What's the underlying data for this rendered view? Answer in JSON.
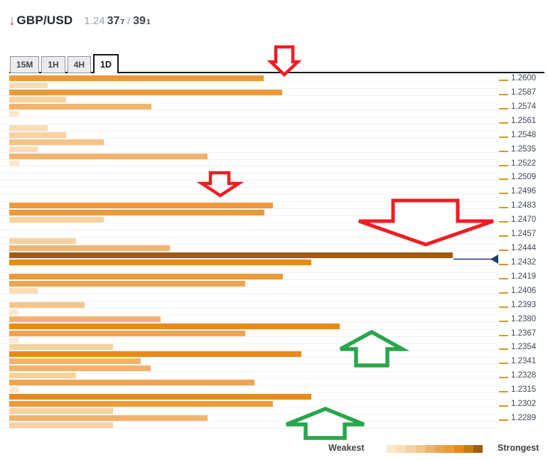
{
  "header": {
    "direction_icon": "down-arrow",
    "pair": "GBP/USD",
    "price_big": "1.24",
    "bid": "37",
    "bid_sup": "7",
    "separator": "/",
    "ask": "39",
    "ask_sup": "1"
  },
  "tabs": [
    {
      "label": "15M",
      "active": false
    },
    {
      "label": "1H",
      "active": false
    },
    {
      "label": "4H",
      "active": false
    },
    {
      "label": "1D",
      "active": true
    }
  ],
  "legend": {
    "weakest": "Weakest",
    "strongest": "Strongest"
  },
  "palette": [
    "#fbe8cd",
    "#f9ddb7",
    "#f7d2a0",
    "#f5c487",
    "#f2b46c",
    "#efa450",
    "#ec9a39",
    "#e78a1c",
    "#c97a16",
    "#9e5c10"
  ],
  "colors": {
    "header_arrow": "#c9503a",
    "red_arrow": "#ee1d23",
    "green_arrow": "#29a64b",
    "navy_marker": "#1e3f63",
    "tick_dash": "#d5962c",
    "price_label": "#3e4756",
    "grid_line": "#f0f2f7",
    "top_line": "#17181a"
  },
  "chart_data": {
    "type": "bar",
    "orientation": "horizontal",
    "title": "GBP/USD technical confluence levels (1D)",
    "value_meaning": "confluence strength; bar width in px, tier 1=weakest .. 10=strongest color",
    "legend": {
      "min": "Weakest",
      "max": "Strongest",
      "position": "bottom"
    },
    "axis": {
      "side": "right",
      "tick_color": "orange-dash"
    },
    "price_marker": {
      "type": "current-price-pointer",
      "between_levels": [
        "1.2444",
        "1.2432"
      ]
    },
    "annotations": [
      {
        "type": "arrow-down",
        "color": "red",
        "size": "small",
        "near_level": "1.2600"
      },
      {
        "type": "arrow-down",
        "color": "red",
        "size": "small",
        "near_level": "1.2496"
      },
      {
        "type": "arrow-down",
        "color": "red",
        "size": "large",
        "near_level": "1.2470-1.2444"
      },
      {
        "type": "arrow-up",
        "color": "green",
        "size": "small",
        "near_level": "1.2367-1.2354"
      },
      {
        "type": "arrow-up",
        "color": "green",
        "size": "small",
        "near_level": "1.2289"
      }
    ],
    "rows": [
      {
        "price": "1.2600",
        "len": 358,
        "tier": 7
      },
      {
        "price": null,
        "len": 54,
        "tier": 2
      },
      {
        "price": "1.2587",
        "len": 384,
        "tier": 7
      },
      {
        "price": null,
        "len": 80,
        "tier": 3
      },
      {
        "price": "1.2574",
        "len": 200,
        "tier": 5
      },
      {
        "price": null,
        "len": 14,
        "tier": 1
      },
      {
        "price": "1.2561",
        "len": 0,
        "tier": 0
      },
      {
        "price": null,
        "len": 54,
        "tier": 2
      },
      {
        "price": "1.2548",
        "len": 80,
        "tier": 3
      },
      {
        "price": null,
        "len": 133,
        "tier": 4
      },
      {
        "price": "1.2535",
        "len": 40,
        "tier": 2
      },
      {
        "price": null,
        "len": 279,
        "tier": 5
      },
      {
        "price": "1.2522",
        "len": 14,
        "tier": 1
      },
      {
        "price": null,
        "len": 0,
        "tier": 0
      },
      {
        "price": "1.2509",
        "len": 0,
        "tier": 0
      },
      {
        "price": null,
        "len": 0,
        "tier": 0
      },
      {
        "price": "1.2496",
        "len": 0,
        "tier": 0
      },
      {
        "price": null,
        "len": 0,
        "tier": 0
      },
      {
        "price": "1.2483",
        "len": 371,
        "tier": 7
      },
      {
        "price": null,
        "len": 359,
        "tier": 7
      },
      {
        "price": "1.2470",
        "len": 133,
        "tier": 3
      },
      {
        "price": null,
        "len": 0,
        "tier": 0
      },
      {
        "price": "1.2457",
        "len": 0,
        "tier": 0
      },
      {
        "price": null,
        "len": 94,
        "tier": 3
      },
      {
        "price": "1.2444",
        "len": 226,
        "tier": 5
      },
      {
        "price": null,
        "len": 624,
        "tier": 10
      },
      {
        "price": "1.2432",
        "len": 425,
        "tier": 8
      },
      {
        "price": null,
        "len": 0,
        "tier": 0
      },
      {
        "price": "1.2419",
        "len": 385,
        "tier": 7
      },
      {
        "price": null,
        "len": 332,
        "tier": 6
      },
      {
        "price": "1.2406",
        "len": 40,
        "tier": 2
      },
      {
        "price": null,
        "len": 0,
        "tier": 0
      },
      {
        "price": "1.2393",
        "len": 106,
        "tier": 4
      },
      {
        "price": null,
        "len": 12,
        "tier": 1
      },
      {
        "price": "1.2380",
        "len": 213,
        "tier": 5
      },
      {
        "price": null,
        "len": 465,
        "tier": 8
      },
      {
        "price": "1.2367",
        "len": 332,
        "tier": 6
      },
      {
        "price": null,
        "len": 13,
        "tier": 1
      },
      {
        "price": "1.2354",
        "len": 146,
        "tier": 3
      },
      {
        "price": null,
        "len": 411,
        "tier": 8
      },
      {
        "price": "1.2341",
        "len": 185,
        "tier": 5
      },
      {
        "price": null,
        "len": 199,
        "tier": 5
      },
      {
        "price": "1.2328",
        "len": 94,
        "tier": 3
      },
      {
        "price": null,
        "len": 345,
        "tier": 6
      },
      {
        "price": "1.2315",
        "len": 13,
        "tier": 1
      },
      {
        "price": null,
        "len": 425,
        "tier": 8
      },
      {
        "price": "1.2302",
        "len": 371,
        "tier": 7
      },
      {
        "price": null,
        "len": 146,
        "tier": 3
      },
      {
        "price": "1.2289",
        "len": 279,
        "tier": 5
      },
      {
        "price": null,
        "len": 146,
        "tier": 3
      }
    ]
  }
}
